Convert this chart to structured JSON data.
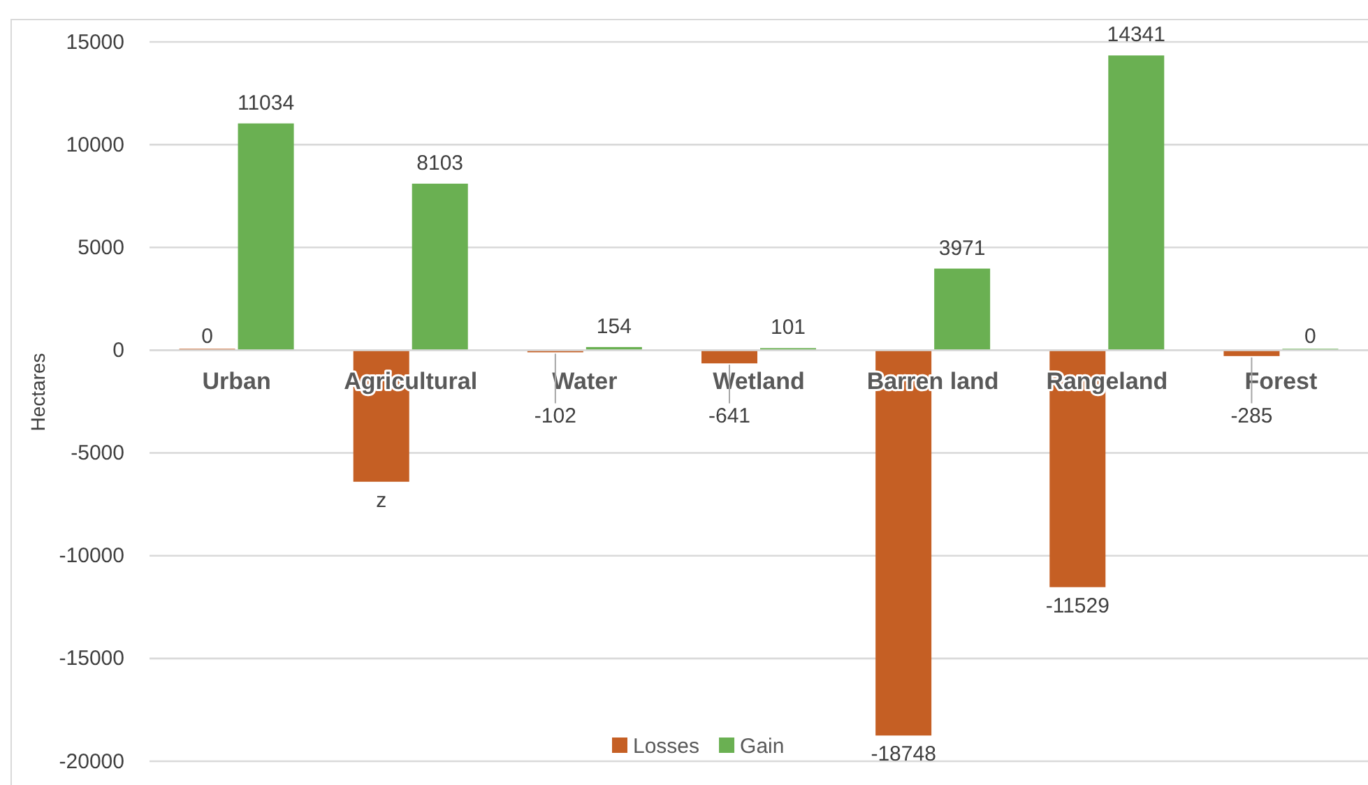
{
  "chart_data": {
    "type": "bar",
    "ylabel": "Hectares",
    "categories": [
      "Urban",
      "Agricultural",
      "Water",
      "Wetland",
      "Barren land",
      "Rangeland",
      "Forest"
    ],
    "series": [
      {
        "name": "Losses",
        "color": "#c55f24",
        "values": [
          0,
          -6400,
          -102,
          -641,
          -18748,
          -11529,
          -285
        ],
        "value_labels": [
          "0",
          "z",
          "-102",
          "-641",
          "-18748",
          "-11529",
          "-285"
        ]
      },
      {
        "name": "Gain",
        "color": "#6ab052",
        "values": [
          11034,
          8103,
          154,
          101,
          3971,
          14341,
          0
        ],
        "value_labels": [
          "11034",
          "8103",
          "154",
          "101",
          "3971",
          "14341",
          "0"
        ]
      }
    ],
    "ylim": [
      -20000,
      15000
    ],
    "yticks": [
      -20000,
      -15000,
      -10000,
      -5000,
      0,
      5000,
      10000,
      15000
    ],
    "grid": "y",
    "legend": "bottom"
  }
}
